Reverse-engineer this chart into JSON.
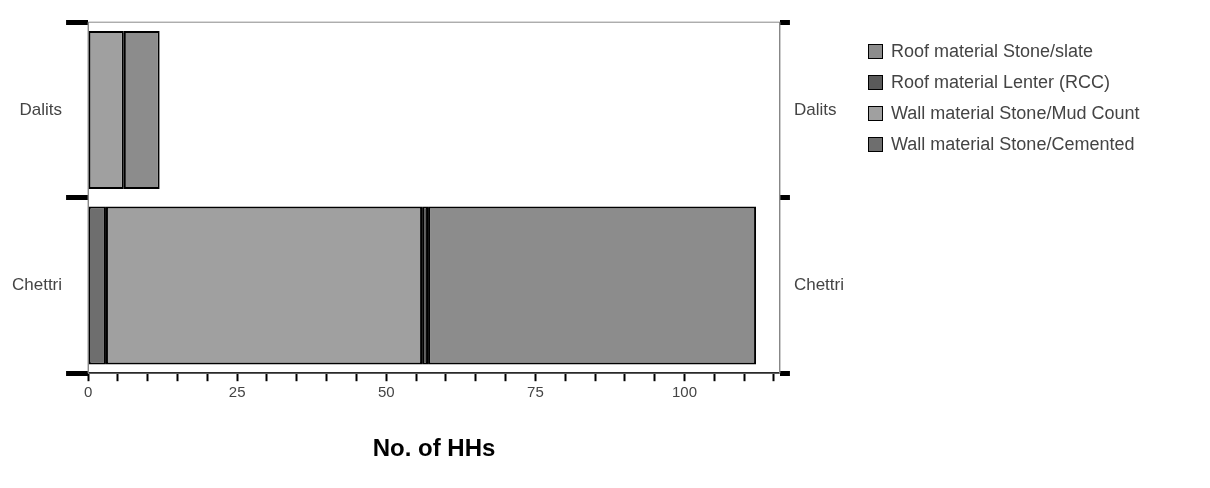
{
  "chart_data": {
    "type": "bar",
    "orientation": "horizontal",
    "stacked": true,
    "xlabel": "No. of HHs",
    "categories": [
      "Dalits",
      "Chettri"
    ],
    "series": [
      {
        "name": "Wall material Stone/Cemented",
        "color": "#6e6e6e",
        "values": [
          0,
          3
        ]
      },
      {
        "name": "Wall material Stone/Mud Count",
        "color": "#a0a0a0",
        "values": [
          6,
          53
        ]
      },
      {
        "name": "Roof material Lenter (RCC)",
        "color": "#5a5a5a",
        "values": [
          0,
          1
        ]
      },
      {
        "name": "Roof material Stone/slate",
        "color": "#8c8c8c",
        "values": [
          6,
          55
        ]
      }
    ],
    "xlim": [
      0,
      116
    ],
    "xticks": [
      0,
      {
        "value": 5,
        "label": null
      },
      {
        "value": 10,
        "label": null
      },
      {
        "value": 15,
        "label": null
      },
      {
        "value": 20,
        "label": null
      },
      25,
      {
        "value": 30,
        "label": null
      },
      {
        "value": 35,
        "label": null
      },
      {
        "value": 40,
        "label": null
      },
      {
        "value": 45,
        "label": null
      },
      50,
      {
        "value": 55,
        "label": null
      },
      {
        "value": 60,
        "label": null
      },
      {
        "value": 65,
        "label": null
      },
      {
        "value": 70,
        "label": null
      },
      75,
      {
        "value": 80,
        "label": null
      },
      {
        "value": 85,
        "label": null
      },
      {
        "value": 90,
        "label": null
      },
      {
        "value": 95,
        "label": null
      },
      100,
      {
        "value": 105,
        "label": null
      },
      {
        "value": 110,
        "label": null
      },
      {
        "value": 115,
        "label": null
      }
    ],
    "legend": "right"
  }
}
